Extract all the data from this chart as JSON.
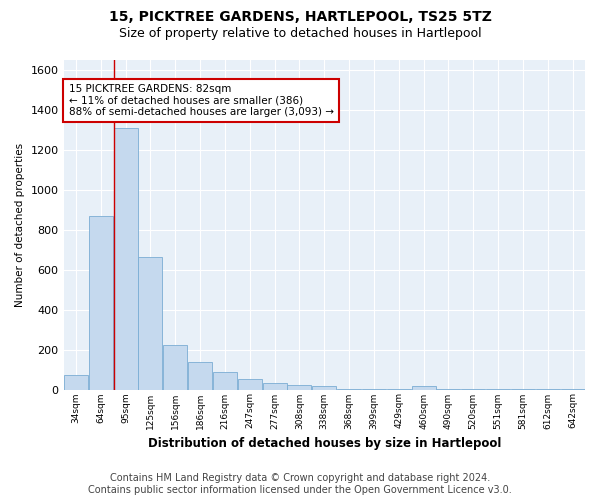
{
  "title": "15, PICKTREE GARDENS, HARTLEPOOL, TS25 5TZ",
  "subtitle": "Size of property relative to detached houses in Hartlepool",
  "xlabel": "Distribution of detached houses by size in Hartlepool",
  "ylabel": "Number of detached properties",
  "bar_color": "#c5d9ee",
  "bar_edge_color": "#7aadd4",
  "background_color": "#e8f0f8",
  "grid_color": "#ffffff",
  "annotation_text": "15 PICKTREE GARDENS: 82sqm\n← 11% of detached houses are smaller (386)\n88% of semi-detached houses are larger (3,093) →",
  "annotation_box_color": "#ffffff",
  "annotation_border_color": "#cc0000",
  "vline_bar_index": 1.55,
  "vline_color": "#cc0000",
  "categories": [
    "34sqm",
    "64sqm",
    "95sqm",
    "125sqm",
    "156sqm",
    "186sqm",
    "216sqm",
    "247sqm",
    "277sqm",
    "308sqm",
    "338sqm",
    "368sqm",
    "399sqm",
    "429sqm",
    "460sqm",
    "490sqm",
    "520sqm",
    "551sqm",
    "581sqm",
    "612sqm",
    "642sqm"
  ],
  "values": [
    75,
    870,
    1310,
    665,
    225,
    140,
    90,
    55,
    35,
    25,
    20,
    5,
    5,
    5,
    20,
    5,
    5,
    5,
    5,
    5,
    5
  ],
  "ylim": [
    0,
    1650
  ],
  "yticks": [
    0,
    200,
    400,
    600,
    800,
    1000,
    1200,
    1400,
    1600
  ],
  "footer_text": "Contains HM Land Registry data © Crown copyright and database right 2024.\nContains public sector information licensed under the Open Government Licence v3.0.",
  "title_fontsize": 10,
  "subtitle_fontsize": 9,
  "footer_fontsize": 7,
  "fig_facecolor": "#ffffff"
}
